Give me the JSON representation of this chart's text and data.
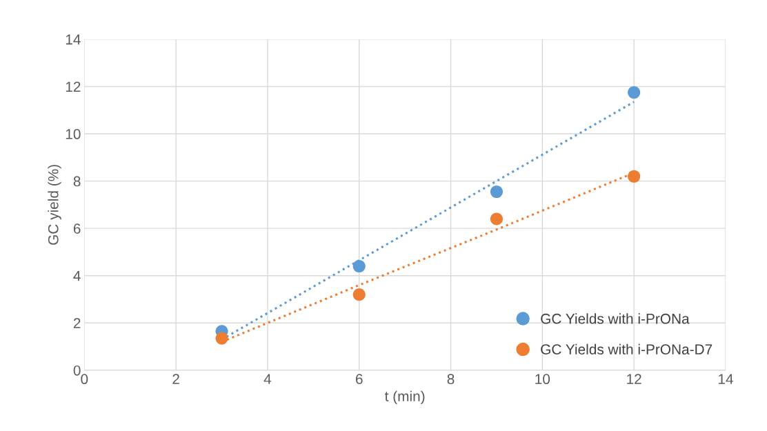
{
  "chart_data": {
    "type": "scatter",
    "xlabel": "t (min)",
    "ylabel": "GC yield (%)",
    "x": [
      3,
      6,
      9,
      12
    ],
    "series": [
      {
        "name": "GC Yields with i-PrONa",
        "color": "#5b9bd5",
        "values": [
          1.65,
          4.4,
          7.55,
          11.75
        ],
        "marker": "circle"
      },
      {
        "name": "GC Yields with i-PrONa-D7",
        "color": "#ed7d31",
        "values": [
          1.35,
          3.2,
          6.4,
          8.2
        ],
        "marker": "circle"
      },
      {
        "type": "line",
        "color": "#5b9bd5",
        "values": [
          1.3,
          4.65,
          8.0,
          11.35
        ],
        "line_style": "dotted",
        "marker": "none"
      },
      {
        "type": "line",
        "color": "#ed7d31",
        "values": [
          1.2,
          3.6,
          5.95,
          8.35
        ],
        "line_style": "dotted",
        "marker": "none"
      }
    ],
    "xlim": [
      0,
      14
    ],
    "xticks": [
      0,
      2,
      4,
      6,
      8,
      10,
      12,
      14
    ],
    "ylim": [
      0,
      14
    ],
    "yticks": [
      0,
      2,
      4,
      6,
      8,
      10,
      12,
      14
    ],
    "grid": true,
    "legend": "bottom right"
  }
}
